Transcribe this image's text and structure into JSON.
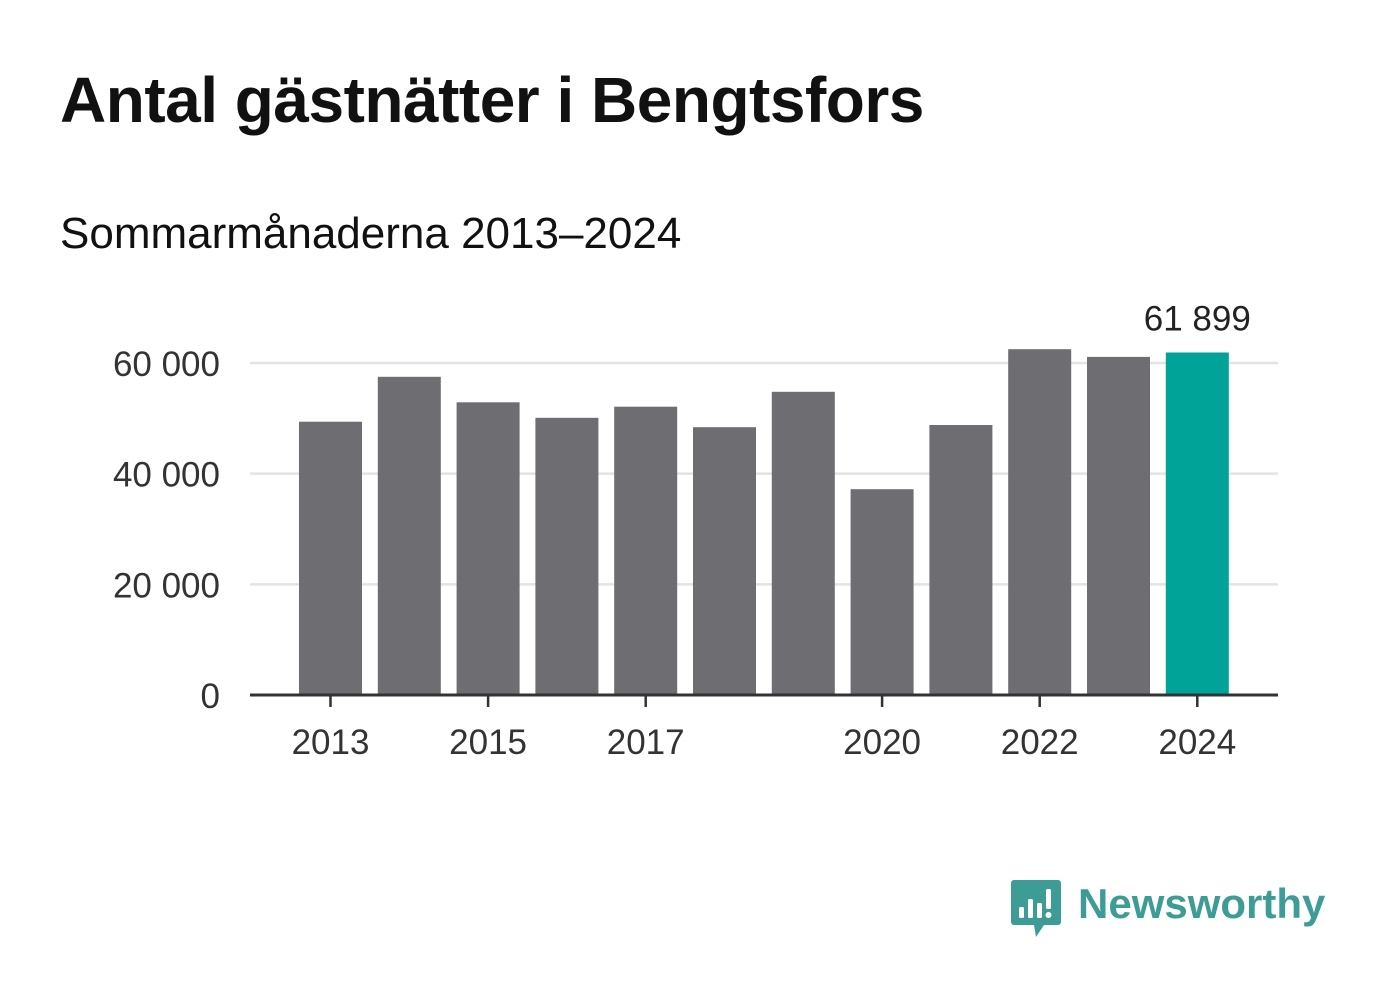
{
  "header": {
    "title": "Antal gästnätter i Bengtsfors",
    "subtitle": "Sommarmånaderna 2013–2024"
  },
  "brand": {
    "name": "Newsworthy",
    "icon": "bar-chart-speech-bubble-icon",
    "color": "#3d9d96"
  },
  "chart_data": {
    "type": "bar",
    "title": "Antal gästnätter i Bengtsfors",
    "subtitle": "Sommarmånaderna 2013–2024",
    "xlabel": "",
    "ylabel": "",
    "categories": [
      "2013",
      "2014",
      "2015",
      "2016",
      "2017",
      "2018",
      "2019",
      "2020",
      "2021",
      "2022",
      "2023",
      "2024"
    ],
    "values": [
      49400,
      57500,
      52900,
      50100,
      52100,
      48400,
      54800,
      37200,
      48800,
      62500,
      61100,
      61899
    ],
    "ylim": [
      0,
      64000
    ],
    "yticks": [
      0,
      20000,
      40000,
      60000
    ],
    "ytick_labels": [
      "0",
      "20 000",
      "40 000",
      "60 000"
    ],
    "xtick_labels": [
      "2013",
      "2015",
      "2017",
      "2020",
      "2022",
      "2024"
    ],
    "highlight_category": "2024",
    "value_labels": [
      {
        "category": "2024",
        "text": "61 899"
      }
    ],
    "grid": true,
    "legend": "none",
    "colors": {
      "bar": "#6e6d72",
      "highlight": "#00a398",
      "grid": "#e3e3e3",
      "axis": "#333333"
    }
  }
}
